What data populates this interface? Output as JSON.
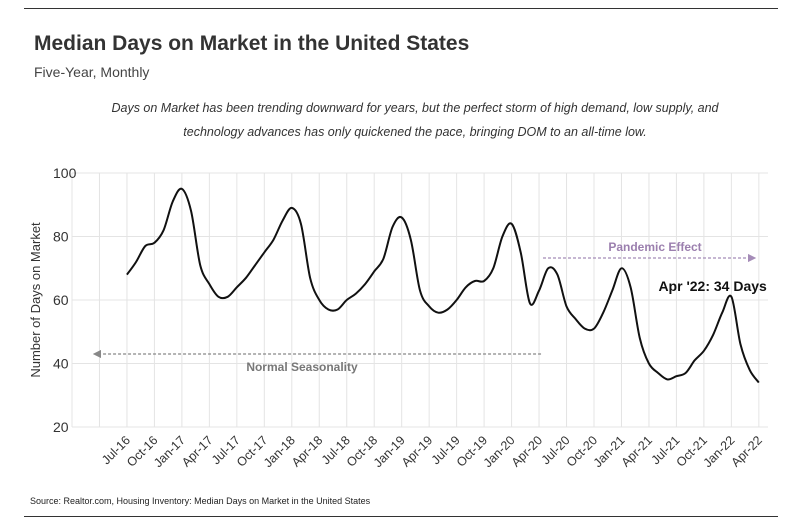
{
  "header": {
    "title": "Median Days on Market in the United States",
    "subtitle": "Five-Year, Monthly",
    "note": "Days on Market has been trending downward for years, but the perfect storm of high demand, low supply, and technology advances has only quickened the pace, bringing DOM to an all-time low."
  },
  "footer": {
    "source": "Source:  Realtor.com, Housing Inventory: Median Days on Market in the United States"
  },
  "chart_data": {
    "type": "line",
    "title": "Median Days on Market in the United States",
    "xlabel": "",
    "ylabel": "Number of Days on Market",
    "ylim": [
      20,
      100
    ],
    "yticks": [
      20,
      40,
      60,
      80,
      100
    ],
    "grid": true,
    "line_color": "#111111",
    "x_tick_labels": [
      "Jul-16",
      "Oct-16",
      "Jan-17",
      "Apr-17",
      "Jul-17",
      "Oct-17",
      "Jan-18",
      "Apr-18",
      "Jul-18",
      "Oct-18",
      "Jan-19",
      "Apr-19",
      "Jul-19",
      "Oct-19",
      "Jan-20",
      "Apr-20",
      "Jul-20",
      "Oct-20",
      "Jan-21",
      "Apr-21",
      "Jul-21",
      "Oct-21",
      "Jan-22",
      "Apr-22"
    ],
    "x": [
      "Jul-16",
      "Aug-16",
      "Sep-16",
      "Oct-16",
      "Nov-16",
      "Dec-16",
      "Jan-17",
      "Feb-17",
      "Mar-17",
      "Apr-17",
      "May-17",
      "Jun-17",
      "Jul-17",
      "Aug-17",
      "Sep-17",
      "Oct-17",
      "Nov-17",
      "Dec-17",
      "Jan-18",
      "Feb-18",
      "Mar-18",
      "Apr-18",
      "May-18",
      "Jun-18",
      "Jul-18",
      "Aug-18",
      "Sep-18",
      "Oct-18",
      "Nov-18",
      "Dec-18",
      "Jan-19",
      "Feb-19",
      "Mar-19",
      "Apr-19",
      "May-19",
      "Jun-19",
      "Jul-19",
      "Aug-19",
      "Sep-19",
      "Oct-19",
      "Nov-19",
      "Dec-19",
      "Jan-20",
      "Feb-20",
      "Mar-20",
      "Apr-20",
      "May-20",
      "Jun-20",
      "Jul-20",
      "Aug-20",
      "Sep-20",
      "Oct-20",
      "Nov-20",
      "Dec-20",
      "Jan-21",
      "Feb-21",
      "Mar-21",
      "Apr-21",
      "May-21",
      "Jun-21",
      "Jul-21",
      "Aug-21",
      "Sep-21",
      "Oct-21",
      "Nov-21",
      "Dec-21",
      "Jan-22",
      "Feb-22",
      "Mar-22",
      "Apr-22"
    ],
    "series": [
      {
        "name": "Median Days on Market",
        "values": [
          68,
          72,
          77,
          78,
          82,
          91,
          95,
          88,
          71,
          65,
          61,
          61,
          64,
          67,
          71,
          75,
          79,
          85,
          89,
          84,
          67,
          60,
          57,
          57,
          60,
          62,
          65,
          69,
          73,
          83,
          86,
          79,
          63,
          58,
          56,
          57,
          60,
          64,
          66,
          66,
          70,
          80,
          84,
          75,
          59,
          63,
          70,
          68,
          58,
          54,
          51,
          51,
          56,
          63,
          70,
          64,
          48,
          40,
          37,
          35,
          36,
          37,
          41,
          44,
          49,
          56,
          61,
          46,
          38,
          34
        ]
      }
    ],
    "annotations": [
      {
        "text": "Apr '22: 34 Days",
        "x": "Apr-22",
        "y": 34
      },
      {
        "text": "Normal Seasonality",
        "x_start": "Apr-20",
        "x_end": "Jul-16",
        "y": 43,
        "color": "#777777"
      },
      {
        "text": "Pandemic Effect",
        "x_start": "May-20",
        "x_end": "Apr-22",
        "y": 72,
        "color": "#9b7fae"
      }
    ]
  }
}
